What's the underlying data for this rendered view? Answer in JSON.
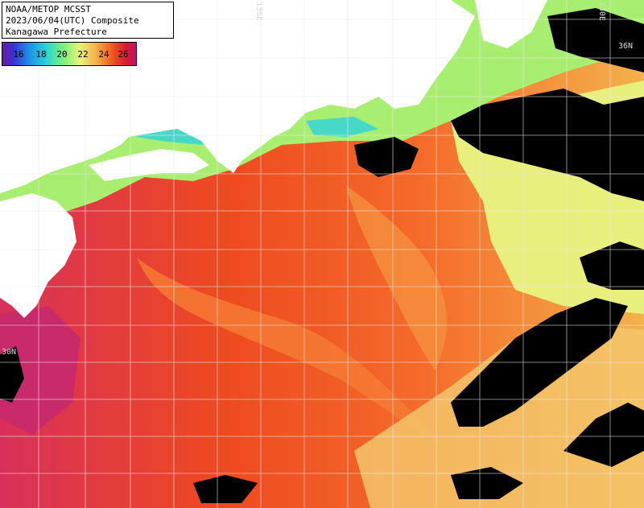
{
  "header": {
    "line1": "NOAA/METOP MCSST",
    "line2": "2023/06/04(UTC) Composite",
    "line3": "Kanagawa Prefecture"
  },
  "legend": {
    "ticks": [
      "16",
      "18",
      "20",
      "22",
      "24",
      "26"
    ],
    "colors": [
      "#6a1aa0",
      "#3a2fd0",
      "#1f8fe8",
      "#29d6d6",
      "#7ef07a",
      "#e9f27a",
      "#f3b24a",
      "#ef5a22",
      "#d81f2a",
      "#c01070"
    ]
  },
  "grid_labels": {
    "lat_36": "36N",
    "lat_30": "30N",
    "lon_136": "136E",
    "lon_140": "140E"
  },
  "colors": {
    "land": "#ffffff",
    "cloud": "#000000",
    "grid": "#e8e8e8",
    "warm_sea": "#ee4a1f",
    "warm_sea_light": "#f46a2a",
    "hot_sea": "#c8206a",
    "cool_sea": "#f0e878",
    "coastal_green": "#8ae868",
    "cyan_sea": "#40d8d0"
  }
}
